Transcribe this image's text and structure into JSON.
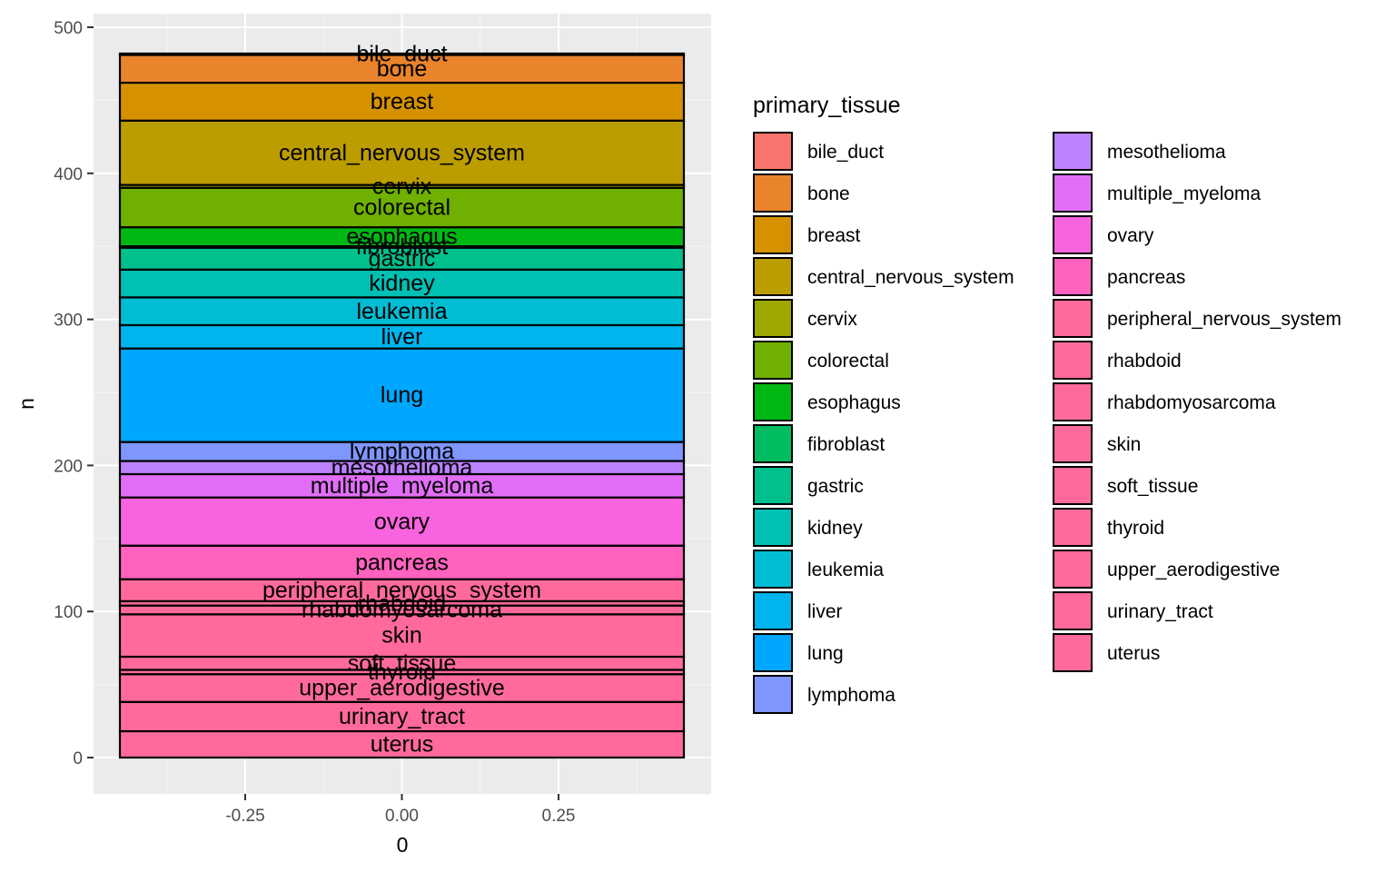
{
  "chart_data": {
    "type": "bar",
    "stacked": true,
    "xlabel": "0",
    "ylabel": "n",
    "xlim": [
      -0.5,
      0.5
    ],
    "ylim": [
      0,
      500
    ],
    "xticks": [
      -0.25,
      0.0,
      0.25
    ],
    "xtick_labels": [
      "-0.25",
      "0.00",
      "0.25"
    ],
    "yticks": [
      0,
      100,
      200,
      300,
      400,
      500
    ],
    "ytick_labels": [
      "0",
      "100",
      "200",
      "300",
      "400",
      "500"
    ],
    "grid": true,
    "legend": {
      "title": "primary_tissue",
      "position": "right",
      "columns": 2
    },
    "series": [
      {
        "name": "bile_duct",
        "value": 1,
        "color": "#F8766D"
      },
      {
        "name": "bone",
        "value": 19,
        "color": "#E9842C"
      },
      {
        "name": "breast",
        "value": 26,
        "color": "#D69100"
      },
      {
        "name": "central_nervous_system",
        "value": 44,
        "color": "#BC9D00"
      },
      {
        "name": "cervix",
        "value": 2,
        "color": "#9CA700"
      },
      {
        "name": "colorectal",
        "value": 27,
        "color": "#6FB000"
      },
      {
        "name": "esophagus",
        "value": 13,
        "color": "#00B813"
      },
      {
        "name": "fibroblast",
        "value": 1,
        "color": "#00BD61"
      },
      {
        "name": "gastric",
        "value": 15,
        "color": "#00C08E"
      },
      {
        "name": "kidney",
        "value": 19,
        "color": "#00C0B4"
      },
      {
        "name": "leukemia",
        "value": 19,
        "color": "#00BDD4"
      },
      {
        "name": "liver",
        "value": 16,
        "color": "#00B5EE"
      },
      {
        "name": "lung",
        "value": 64,
        "color": "#00A7FF"
      },
      {
        "name": "lymphoma",
        "value": 13,
        "color": "#7F96FF"
      },
      {
        "name": "mesothelioma",
        "value": 9,
        "color": "#BC81FF"
      },
      {
        "name": "multiple_myeloma",
        "value": 16,
        "color": "#E26EF7"
      },
      {
        "name": "ovary",
        "value": 33,
        "color": "#F863DF"
      },
      {
        "name": "pancreas",
        "value": 23,
        "color": "#FF62BF"
      },
      {
        "name": "peripheral_nervous_system",
        "value": 15,
        "color": "#FF6A9A"
      },
      {
        "name": "rhabdoid",
        "value": 3,
        "color": "#FF6A9A"
      },
      {
        "name": "rhabdomyosarcoma",
        "value": 6,
        "color": "#FF6A9A"
      },
      {
        "name": "skin",
        "value": 29,
        "color": "#FF6A9A"
      },
      {
        "name": "soft_tissue",
        "value": 9,
        "color": "#FF6A9A"
      },
      {
        "name": "thyroid",
        "value": 3,
        "color": "#FF6A9A"
      },
      {
        "name": "upper_aerodigestive",
        "value": 19,
        "color": "#FF6A9A"
      },
      {
        "name": "urinary_tract",
        "value": 20,
        "color": "#FF6A9A"
      },
      {
        "name": "uterus",
        "value": 18,
        "color": "#FF6A9A"
      }
    ]
  }
}
